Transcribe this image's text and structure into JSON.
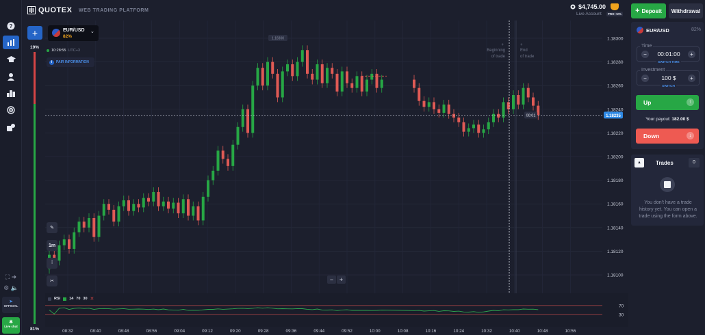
{
  "header": {
    "logo": "QUOTEX",
    "platform_label": "WEB TRADING PLATFORM",
    "balance": "$4,745.00",
    "account_type": "Live Account",
    "pro_badge": "PRO +2%",
    "deposit_label": "Deposit",
    "withdrawal_label": "Withdrawal"
  },
  "sidebar": {
    "items": [
      {
        "icon": "help-icon",
        "active": false
      },
      {
        "icon": "chart-icon",
        "active": true
      },
      {
        "icon": "education-icon",
        "active": false
      },
      {
        "icon": "account-icon",
        "active": false
      },
      {
        "icon": "leaderboard-icon",
        "active": false
      },
      {
        "icon": "signal-icon",
        "active": false
      },
      {
        "icon": "market-icon",
        "active": false
      }
    ],
    "official_label": "OFFICIAL",
    "livechat_label": "Live chat"
  },
  "chart": {
    "asset_name": "EUR/USD",
    "asset_payout": "82%",
    "server_time": "10:28:55",
    "timezone": "UTC+3",
    "pair_info_label": "PAIR INFORMATION",
    "sentiment_up": "19%",
    "sentiment_down": "81%",
    "sentiment_up_fraction": 0.19,
    "timeframe_label": "1m",
    "beginning_of_trade": [
      "Beginning",
      "of trade"
    ],
    "end_of_trade": [
      "End",
      "of trade"
    ],
    "current_price": "1.18235",
    "timer": "00:01",
    "high_marker": "1.18300",
    "rsi_label": "RSI",
    "rsi_period": "14",
    "rsi_upper": "70",
    "rsi_lower": "30",
    "zoom_minus": "−",
    "zoom_plus": "+"
  },
  "chart_data": {
    "type": "candlestick",
    "y_ticks": [
      "1.18300",
      "1.18280",
      "1.18260",
      "1.18240",
      "1.18220",
      "1.18200",
      "1.18180",
      "1.18160",
      "1.18140",
      "1.18120",
      "1.18100"
    ],
    "ylim": [
      1.18085,
      1.18315
    ],
    "x_ticks": [
      "08:32",
      "08:40",
      "08:48",
      "08:56",
      "09:04",
      "09:12",
      "09:20",
      "09:28",
      "09:36",
      "09:44",
      "09:52",
      "10:00",
      "10:08",
      "10:16",
      "10:24",
      "10:32",
      "10:40",
      "10:48",
      "10:56"
    ],
    "candles": [
      [
        1.18105,
        1.18117
      ],
      [
        1.18117,
        1.18112
      ],
      [
        1.18112,
        1.18125
      ],
      [
        1.18125,
        1.1813
      ],
      [
        1.1813,
        1.18122
      ],
      [
        1.18122,
        1.18136
      ],
      [
        1.18136,
        1.18145
      ],
      [
        1.18145,
        1.1814
      ],
      [
        1.1814,
        1.18148
      ],
      [
        1.18148,
        1.18132
      ],
      [
        1.18132,
        1.1815
      ],
      [
        1.1815,
        1.1816
      ],
      [
        1.1816,
        1.18155
      ],
      [
        1.18155,
        1.18145
      ],
      [
        1.18145,
        1.18158
      ],
      [
        1.18158,
        1.18163
      ],
      [
        1.18163,
        1.18154
      ],
      [
        1.18154,
        1.1816
      ],
      [
        1.1816,
        1.18157
      ],
      [
        1.18157,
        1.18165
      ],
      [
        1.18165,
        1.18162
      ],
      [
        1.18162,
        1.1817
      ],
      [
        1.1817,
        1.18158
      ],
      [
        1.18158,
        1.18162
      ],
      [
        1.18162,
        1.18156
      ],
      [
        1.18156,
        1.18161
      ],
      [
        1.18161,
        1.18152
      ],
      [
        1.18152,
        1.18164
      ],
      [
        1.18164,
        1.1815
      ],
      [
        1.1815,
        1.18158
      ],
      [
        1.18158,
        1.18146
      ],
      [
        1.18146,
        1.18166
      ],
      [
        1.18166,
        1.1818
      ],
      [
        1.1818,
        1.18188
      ],
      [
        1.18188,
        1.18205
      ],
      [
        1.18205,
        1.18198
      ],
      [
        1.18198,
        1.18192
      ],
      [
        1.18192,
        1.1821
      ],
      [
        1.1821,
        1.18225
      ],
      [
        1.18225,
        1.1824
      ],
      [
        1.1824,
        1.1822
      ],
      [
        1.1822,
        1.1826
      ],
      [
        1.1826,
        1.18275
      ],
      [
        1.18275,
        1.1826
      ],
      [
        1.1826,
        1.1828
      ],
      [
        1.1828,
        1.1827
      ],
      [
        1.1827,
        1.1825
      ],
      [
        1.1825,
        1.18272
      ],
      [
        1.18272,
        1.18278
      ],
      [
        1.18278,
        1.18268
      ],
      [
        1.18268,
        1.1828
      ],
      [
        1.1828,
        1.1829
      ],
      [
        1.1829,
        1.1827
      ],
      [
        1.1827,
        1.18265
      ],
      [
        1.18265,
        1.18278
      ],
      [
        1.18278,
        1.18262
      ],
      [
        1.18262,
        1.18275
      ],
      [
        1.18275,
        1.1827
      ],
      [
        1.1827,
        1.18255
      ],
      [
        1.18255,
        1.18272
      ],
      [
        1.18272,
        1.18262
      ],
      [
        1.18262,
        1.18258
      ],
      [
        1.18258,
        1.18268
      ],
      [
        1.18268,
        1.18255
      ],
      [
        1.18255,
        1.18265
      ],
      [
        1.18265,
        1.1827
      ],
      [
        1.1827,
        1.18258
      ],
      [
        1.18258,
        1.18265
      ],
      [
        1.18265,
        1.18258
      ],
      [
        1.18258,
        1.18247
      ],
      [
        1.18247,
        1.18242
      ],
      [
        1.18242,
        1.18246
      ],
      [
        1.18246,
        1.1824
      ],
      [
        1.1824,
        1.18237
      ],
      [
        1.18237,
        1.18244
      ],
      [
        1.18244,
        1.18236
      ],
      [
        1.18236,
        1.18233
      ],
      [
        1.18233,
        1.18229
      ],
      [
        1.18229,
        1.18221
      ],
      [
        1.18221,
        1.18224
      ],
      [
        1.18224,
        1.18227
      ],
      [
        1.18227,
        1.1822
      ],
      [
        1.1822,
        1.18223
      ],
      [
        1.18223,
        1.18229
      ],
      [
        1.18229,
        1.18236
      ],
      [
        1.18236,
        1.18233
      ],
      [
        1.18233,
        1.18246
      ],
      [
        1.18246,
        1.1824
      ],
      [
        1.1824,
        1.18252
      ],
      [
        1.18252,
        1.18244
      ],
      [
        1.18244,
        1.18258
      ],
      [
        1.18258,
        1.1825
      ],
      [
        1.1825,
        1.18243
      ],
      [
        1.18243,
        1.18235
      ]
    ],
    "rsi_ylim": [
      0,
      100
    ]
  },
  "panel": {
    "asset_name": "EUR/USD",
    "asset_payout": "82%",
    "time_label": "Time",
    "time_value": "00:01:00",
    "switch_time": "SWITCH TIME",
    "investment_label": "Investment",
    "investment_value": "100 $",
    "switch": "SWITCH",
    "up_label": "Up",
    "payout_label": "Your payout:",
    "payout_value": "182.00 $",
    "down_label": "Down"
  },
  "trades": {
    "title": "Trades",
    "count": "0",
    "empty_text": "You don't have a trade history yet. You can open a trade using the form above."
  },
  "colors": {
    "background": "#1c1f2d",
    "up_green": "#27a745",
    "down_red": "#ee5a52",
    "accent_blue": "#2565c7",
    "payout_orange": "#f0a31d"
  }
}
